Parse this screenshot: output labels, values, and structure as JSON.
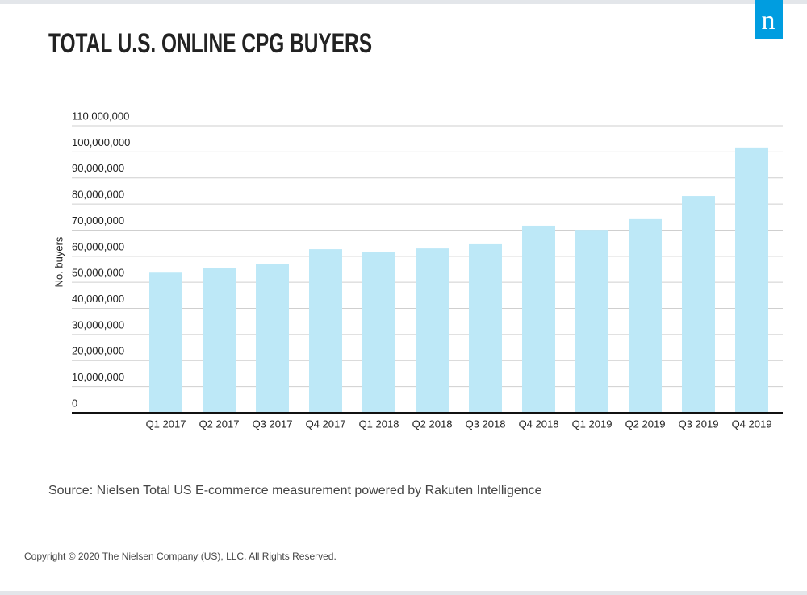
{
  "chart_data": {
    "type": "bar",
    "title": "TOTAL U.S. ONLINE CPG BUYERS",
    "logo": "n",
    "y_label": "No. buyers",
    "categories": [
      "Q1 2017",
      "Q2 2017",
      "Q3 2017",
      "Q4 2017",
      "Q1 2018",
      "Q2 2018",
      "Q3 2018",
      "Q4 2018",
      "Q1 2019",
      "Q2 2019",
      "Q3 2019",
      "Q4 2019"
    ],
    "values": [
      54000000,
      55600000,
      56900000,
      62700000,
      61500000,
      63000000,
      64600000,
      71700000,
      70100000,
      74200000,
      83100000,
      101700000
    ],
    "color": "#bde8f7",
    "ylim": [
      0,
      110000000
    ],
    "yticks": [
      0,
      {
        "value": 10000000,
        "label": "10,000,000"
      },
      {
        "value": 20000000,
        "label": "20,000,000"
      },
      {
        "value": 30000000,
        "label": "30,000,000"
      },
      {
        "value": 40000000,
        "label": "40,000,000"
      },
      {
        "value": 50000000,
        "label": "50,000,000"
      },
      {
        "value": 60000000,
        "label": "60,000,000"
      },
      {
        "value": 70000000,
        "label": "70,000,000"
      },
      {
        "value": 80000000,
        "label": "80,000,000"
      },
      {
        "value": 90000000,
        "label": "90,000,000"
      },
      {
        "value": 100000000,
        "label": "100,000,000"
      },
      {
        "value": 110000000,
        "label": "110,000,000"
      }
    ],
    "grid": true,
    "source": "Source: Nielsen Total US E-commerce measurement powered by Rakuten Intelligence",
    "copyright": "Copyright © 2020 The Nielsen Company (US), LLC. All Rights Reserved."
  }
}
